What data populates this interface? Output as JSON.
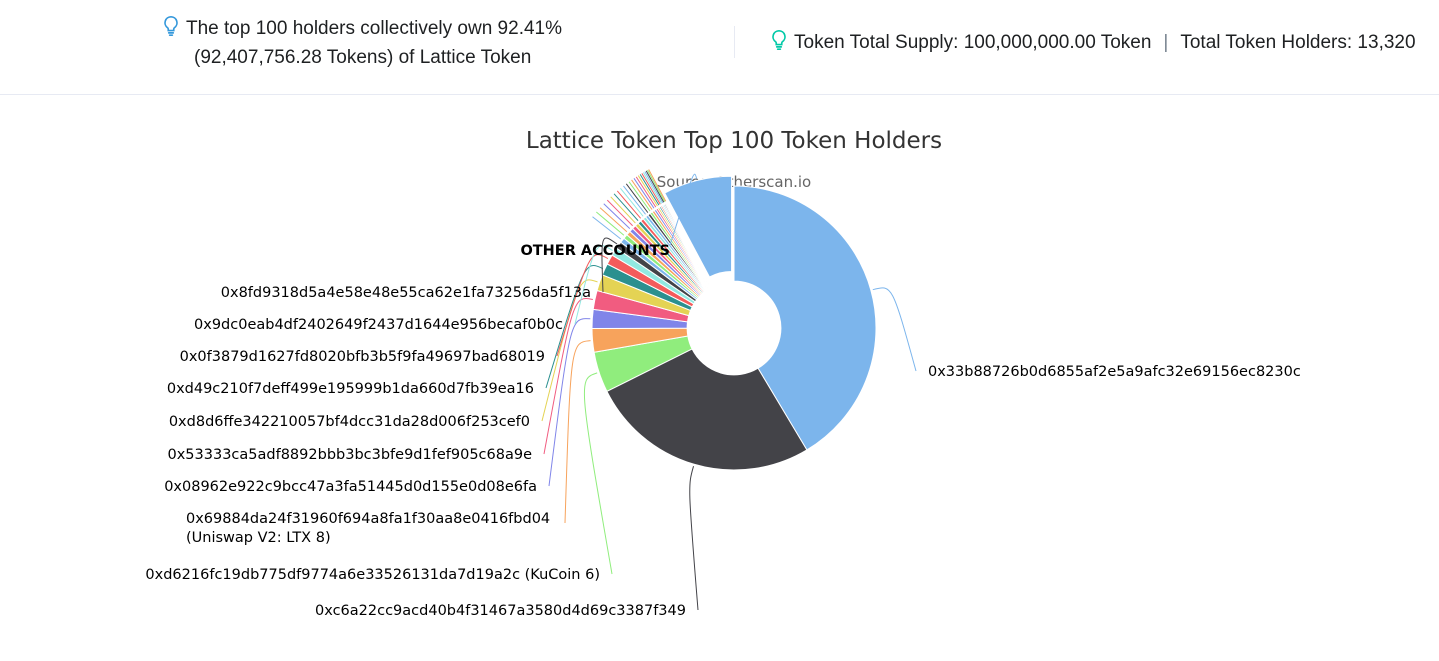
{
  "summary": {
    "left_line1": "The top 100 holders collectively own 92.41%",
    "left_line2": "(92,407,756.28 Tokens) of Lattice Token",
    "supply": "Token Total Supply: 100,000,000.00 Token",
    "separator": "|",
    "holders": "Total Token Holders: 13,320"
  },
  "icons": {
    "info": "lightbulb-icon",
    "info_color": "#00c9a7",
    "info_color_left": "#3498db"
  },
  "chart_data": {
    "type": "pie",
    "title": "Lattice Token Top 100 Token Holders",
    "subtitle": "Source: Etherscan.io",
    "slices": [
      {
        "label": "0x33b88726b0d6855af2e5a9afc32e69156ec8230c",
        "value": 40.3,
        "color": "#7cb5ec"
      },
      {
        "label": "0xc6a22cc9acd40b4f31467a3580d4d69c3387f349",
        "value": 25.5,
        "color": "#434348"
      },
      {
        "label": "0xd6216fc19db775df9774a6e33526131da7d19a2c (KuCoin 6)",
        "value": 4.5,
        "color": "#90ed7d"
      },
      {
        "label": "0x69884da24f31960f694a8fa1f30aa8e0416fbd04 (Uniswap V2: LTX 8)",
        "value": 2.6,
        "color": "#f7a35c"
      },
      {
        "label": "0x08962e922c9bcc47a3fa51445d0d155e0d08e6fa",
        "value": 2.1,
        "color": "#8085e9"
      },
      {
        "label": "0x53333ca5adf8892bbb3bc3bfe9d1fef905c68a9e",
        "value": 2.1,
        "color": "#f15c80"
      },
      {
        "label": "0xd8d6ffe342210057bf4dcc31da28d006f253cef0",
        "value": 1.8,
        "color": "#e4d354"
      },
      {
        "label": "0xd49c210f7deff499e195999b1da660d7fb39ea16",
        "value": 1.3,
        "color": "#2b908f"
      },
      {
        "label": "0x0f3879d1627fd8020bfb3b5f9fa49697bad68019",
        "value": 1.1,
        "color": "#f45b5b"
      },
      {
        "label": "0x9dc0eab4df2402649f2437d1644e956becaf0b0c",
        "value": 0.9,
        "color": "#91e8e1"
      },
      {
        "label": "0x8fd9318d5a4e58e48e55ca62e1fa73256da5f13a",
        "value": 0.8,
        "color": "#434348"
      },
      {
        "label": "",
        "value": 0.55,
        "color": "#7cb5ec"
      },
      {
        "label": "",
        "value": 0.5,
        "color": "#90ed7d"
      },
      {
        "label": "",
        "value": 0.48,
        "color": "#f7a35c"
      },
      {
        "label": "",
        "value": 0.45,
        "color": "#8085e9"
      },
      {
        "label": "",
        "value": 0.42,
        "color": "#f15c80"
      },
      {
        "label": "",
        "value": 0.4,
        "color": "#e4d354"
      },
      {
        "label": "",
        "value": 0.38,
        "color": "#2b908f"
      },
      {
        "label": "",
        "value": 0.36,
        "color": "#f45b5b"
      },
      {
        "label": "",
        "value": 0.34,
        "color": "#91e8e1"
      },
      {
        "label": "",
        "value": 0.32,
        "color": "#7cb5ec"
      },
      {
        "label": "",
        "value": 0.3,
        "color": "#434348"
      },
      {
        "label": "",
        "value": 0.28,
        "color": "#90ed7d"
      },
      {
        "label": "",
        "value": 0.26,
        "color": "#f7a35c"
      },
      {
        "label": "",
        "value": 0.24,
        "color": "#8085e9"
      },
      {
        "label": "",
        "value": 0.22,
        "color": "#f15c80"
      },
      {
        "label": "",
        "value": 0.2,
        "color": "#e4d354"
      },
      {
        "label": "",
        "value": 0.18,
        "color": "#2b908f"
      },
      {
        "label": "",
        "value": 0.16,
        "color": "#f45b5b"
      },
      {
        "label": "",
        "value": 0.15,
        "color": "#91e8e1"
      },
      {
        "label": "",
        "value": 0.14,
        "color": "#7cb5ec"
      },
      {
        "label": "",
        "value": 0.13,
        "color": "#434348"
      },
      {
        "label": "",
        "value": 0.12,
        "color": "#90ed7d"
      },
      {
        "label": "",
        "value": 0.11,
        "color": "#f7a35c"
      },
      {
        "label": "OTHER ACCOUNTS",
        "value": 7.59,
        "color": "#7cb5ec",
        "sliced": true
      }
    ],
    "inner_radius_ratio": 0.33
  }
}
